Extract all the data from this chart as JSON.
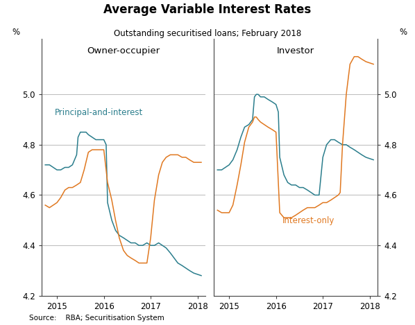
{
  "title": "Average Variable Interest Rates",
  "subtitle": "Outstanding securitised loans; February 2018",
  "source": "Source:    RBA; Securitisation System",
  "left_panel_title": "Owner-occupier",
  "right_panel_title": "Investor",
  "ylabel_left": "%",
  "ylabel_right": "%",
  "ylim": [
    4.2,
    5.22
  ],
  "yticks": [
    4.2,
    4.4,
    4.6,
    4.8,
    5.0
  ],
  "color_pai": "#2a7d8c",
  "color_io": "#e07820",
  "label_pai": "Principal-and-interest",
  "label_io": "Interest-only",
  "owner_pai_x": [
    2014.75,
    2014.84,
    2014.92,
    2015.0,
    2015.08,
    2015.17,
    2015.25,
    2015.33,
    2015.42,
    2015.45,
    2015.5,
    2015.58,
    2015.62,
    2015.67,
    2015.75,
    2015.83,
    2015.92,
    2016.0,
    2016.05,
    2016.08,
    2016.17,
    2016.25,
    2016.33,
    2016.42,
    2016.5,
    2016.58,
    2016.67,
    2016.75,
    2016.83,
    2016.92,
    2017.0,
    2017.08,
    2017.17,
    2017.25,
    2017.33,
    2017.42,
    2017.5,
    2017.58,
    2017.67,
    2017.75,
    2017.83,
    2017.92,
    2018.08
  ],
  "owner_pai_y": [
    4.72,
    4.72,
    4.71,
    4.7,
    4.7,
    4.71,
    4.71,
    4.72,
    4.76,
    4.83,
    4.85,
    4.85,
    4.85,
    4.84,
    4.83,
    4.82,
    4.82,
    4.82,
    4.8,
    4.57,
    4.5,
    4.46,
    4.44,
    4.43,
    4.42,
    4.41,
    4.41,
    4.4,
    4.4,
    4.41,
    4.4,
    4.4,
    4.41,
    4.4,
    4.39,
    4.37,
    4.35,
    4.33,
    4.32,
    4.31,
    4.3,
    4.29,
    4.28
  ],
  "owner_io_x": [
    2014.75,
    2014.84,
    2014.92,
    2015.0,
    2015.08,
    2015.17,
    2015.25,
    2015.33,
    2015.42,
    2015.5,
    2015.58,
    2015.67,
    2015.75,
    2015.83,
    2015.92,
    2016.0,
    2016.08,
    2016.17,
    2016.25,
    2016.33,
    2016.42,
    2016.5,
    2016.58,
    2016.67,
    2016.75,
    2016.83,
    2016.92,
    2017.0,
    2017.08,
    2017.17,
    2017.25,
    2017.33,
    2017.42,
    2017.5,
    2017.58,
    2017.67,
    2017.75,
    2017.83,
    2017.92,
    2018.08
  ],
  "owner_io_y": [
    4.56,
    4.55,
    4.56,
    4.57,
    4.59,
    4.62,
    4.63,
    4.63,
    4.64,
    4.65,
    4.7,
    4.77,
    4.78,
    4.78,
    4.78,
    4.78,
    4.65,
    4.58,
    4.5,
    4.43,
    4.38,
    4.36,
    4.35,
    4.34,
    4.33,
    4.33,
    4.33,
    4.43,
    4.58,
    4.68,
    4.73,
    4.75,
    4.76,
    4.76,
    4.76,
    4.75,
    4.75,
    4.74,
    4.73,
    4.73
  ],
  "inv_pai_x": [
    2014.75,
    2014.84,
    2014.92,
    2015.0,
    2015.08,
    2015.17,
    2015.25,
    2015.33,
    2015.42,
    2015.5,
    2015.54,
    2015.58,
    2015.62,
    2015.67,
    2015.71,
    2015.75,
    2015.83,
    2015.92,
    2016.0,
    2016.05,
    2016.08,
    2016.17,
    2016.25,
    2016.33,
    2016.42,
    2016.5,
    2016.58,
    2016.67,
    2016.75,
    2016.83,
    2016.92,
    2017.0,
    2017.08,
    2017.17,
    2017.25,
    2017.33,
    2017.42,
    2017.5,
    2017.58,
    2017.67,
    2017.75,
    2017.83,
    2017.92,
    2018.08
  ],
  "inv_pai_y": [
    4.7,
    4.7,
    4.71,
    4.72,
    4.74,
    4.78,
    4.83,
    4.87,
    4.88,
    4.9,
    4.99,
    5.0,
    5.0,
    4.99,
    4.99,
    4.99,
    4.98,
    4.97,
    4.96,
    4.93,
    4.75,
    4.68,
    4.65,
    4.64,
    4.64,
    4.63,
    4.63,
    4.62,
    4.61,
    4.6,
    4.6,
    4.75,
    4.8,
    4.82,
    4.82,
    4.81,
    4.8,
    4.8,
    4.79,
    4.78,
    4.77,
    4.76,
    4.75,
    4.74
  ],
  "inv_io_x": [
    2014.75,
    2014.84,
    2014.92,
    2015.0,
    2015.08,
    2015.17,
    2015.25,
    2015.33,
    2015.42,
    2015.5,
    2015.54,
    2015.58,
    2015.62,
    2015.67,
    2015.75,
    2015.83,
    2015.92,
    2016.0,
    2016.05,
    2016.08,
    2016.17,
    2016.25,
    2016.33,
    2016.42,
    2016.5,
    2016.58,
    2016.67,
    2016.75,
    2016.83,
    2016.92,
    2017.0,
    2017.08,
    2017.17,
    2017.25,
    2017.33,
    2017.37,
    2017.42,
    2017.5,
    2017.58,
    2017.67,
    2017.75,
    2017.83,
    2017.92,
    2018.08
  ],
  "inv_io_y": [
    4.54,
    4.53,
    4.53,
    4.53,
    4.56,
    4.64,
    4.72,
    4.81,
    4.87,
    4.89,
    4.91,
    4.91,
    4.9,
    4.89,
    4.88,
    4.87,
    4.86,
    4.85,
    4.65,
    4.53,
    4.51,
    4.51,
    4.51,
    4.52,
    4.53,
    4.54,
    4.55,
    4.55,
    4.55,
    4.56,
    4.57,
    4.57,
    4.58,
    4.59,
    4.6,
    4.61,
    4.8,
    5.0,
    5.12,
    5.15,
    5.15,
    5.14,
    5.13,
    5.12
  ],
  "xlim": [
    2014.67,
    2018.17
  ],
  "xticks": [
    2015,
    2016,
    2017,
    2018
  ],
  "xticklabels": [
    "2015",
    "2016",
    "2017",
    "2018"
  ]
}
